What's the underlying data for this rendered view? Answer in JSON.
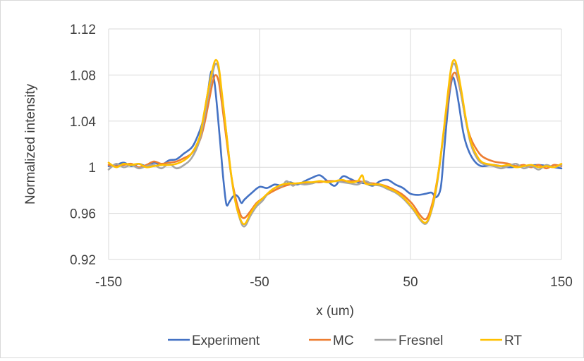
{
  "chart_data": {
    "type": "line",
    "title": "",
    "xlabel": "x (um)",
    "ylabel": "Normalized intensity",
    "xlim": [
      -150,
      150
    ],
    "ylim": [
      0.92,
      1.12
    ],
    "x_ticks": [
      -150,
      -50,
      50,
      150
    ],
    "x_tick_labels": [
      "-150",
      "-50",
      "50",
      "150"
    ],
    "y_ticks": [
      0.92,
      0.96,
      1.0,
      1.04,
      1.08,
      1.12
    ],
    "y_tick_labels": [
      "0.92",
      "0.96",
      "1",
      "1.04",
      "1.08",
      "1.12"
    ],
    "grid": "vertical and horizontal major gridlines",
    "legend_position": "bottom",
    "series": [
      {
        "name": "Experiment",
        "color": "#4472C4",
        "points": [
          [
            -150,
            1.001
          ],
          [
            -145,
            1.002
          ],
          [
            -140,
            1.004
          ],
          [
            -135,
            1.001
          ],
          [
            -130,
            1.003
          ],
          [
            -125,
            1.001
          ],
          [
            -120,
            1.004
          ],
          [
            -115,
            1.002
          ],
          [
            -110,
            1.006
          ],
          [
            -105,
            1.007
          ],
          [
            -100,
            1.012
          ],
          [
            -95,
            1.017
          ],
          [
            -92,
            1.024
          ],
          [
            -88,
            1.038
          ],
          [
            -86,
            1.052
          ],
          [
            -84,
            1.067
          ],
          [
            -82,
            1.083
          ],
          [
            -80,
            1.075
          ],
          [
            -78,
            1.05
          ],
          [
            -76,
            1.02
          ],
          [
            -74,
            0.99
          ],
          [
            -72,
            0.968
          ],
          [
            -70,
            0.97
          ],
          [
            -68,
            0.974
          ],
          [
            -66,
            0.976
          ],
          [
            -64,
            0.974
          ],
          [
            -62,
            0.969
          ],
          [
            -60,
            0.972
          ],
          [
            -55,
            0.978
          ],
          [
            -50,
            0.983
          ],
          [
            -45,
            0.982
          ],
          [
            -40,
            0.985
          ],
          [
            -35,
            0.984
          ],
          [
            -30,
            0.987
          ],
          [
            -25,
            0.985
          ],
          [
            -20,
            0.988
          ],
          [
            -15,
            0.991
          ],
          [
            -10,
            0.993
          ],
          [
            -5,
            0.988
          ],
          [
            0,
            0.984
          ],
          [
            5,
            0.992
          ],
          [
            10,
            0.99
          ],
          [
            15,
            0.987
          ],
          [
            20,
            0.986
          ],
          [
            25,
            0.984
          ],
          [
            30,
            0.988
          ],
          [
            35,
            0.989
          ],
          [
            40,
            0.985
          ],
          [
            45,
            0.982
          ],
          [
            50,
            0.977
          ],
          [
            55,
            0.976
          ],
          [
            60,
            0.977
          ],
          [
            64,
            0.978
          ],
          [
            67,
            0.974
          ],
          [
            70,
            0.982
          ],
          [
            72,
            1.01
          ],
          [
            74,
            1.04
          ],
          [
            76,
            1.065
          ],
          [
            78,
            1.078
          ],
          [
            80,
            1.07
          ],
          [
            82,
            1.055
          ],
          [
            85,
            1.03
          ],
          [
            88,
            1.016
          ],
          [
            92,
            1.006
          ],
          [
            97,
            1.001
          ],
          [
            105,
            1.002
          ],
          [
            115,
            1.0
          ],
          [
            125,
            1.001
          ],
          [
            135,
            1.002
          ],
          [
            145,
            1.0
          ],
          [
            150,
            0.999
          ]
        ]
      },
      {
        "name": "MC",
        "color": "#ED7D31",
        "points": [
          [
            -150,
            1.002
          ],
          [
            -145,
            1.001
          ],
          [
            -140,
            1.002
          ],
          [
            -135,
            1.003
          ],
          [
            -130,
            1.0
          ],
          [
            -125,
            1.002
          ],
          [
            -120,
            1.005
          ],
          [
            -115,
            1.003
          ],
          [
            -110,
            1.004
          ],
          [
            -105,
            1.005
          ],
          [
            -100,
            1.008
          ],
          [
            -95,
            1.012
          ],
          [
            -90,
            1.022
          ],
          [
            -87,
            1.035
          ],
          [
            -84,
            1.054
          ],
          [
            -81,
            1.074
          ],
          [
            -79,
            1.08
          ],
          [
            -77,
            1.074
          ],
          [
            -75,
            1.056
          ],
          [
            -72,
            1.025
          ],
          [
            -69,
            0.995
          ],
          [
            -66,
            0.974
          ],
          [
            -63,
            0.96
          ],
          [
            -61,
            0.956
          ],
          [
            -59,
            0.957
          ],
          [
            -56,
            0.962
          ],
          [
            -52,
            0.969
          ],
          [
            -48,
            0.973
          ],
          [
            -44,
            0.977
          ],
          [
            -40,
            0.98
          ],
          [
            -35,
            0.983
          ],
          [
            -30,
            0.985
          ],
          [
            -25,
            0.986
          ],
          [
            -20,
            0.986
          ],
          [
            -15,
            0.987
          ],
          [
            -10,
            0.987
          ],
          [
            -5,
            0.988
          ],
          [
            0,
            0.988
          ],
          [
            5,
            0.988
          ],
          [
            10,
            0.988
          ],
          [
            15,
            0.988
          ],
          [
            20,
            0.987
          ],
          [
            25,
            0.986
          ],
          [
            30,
            0.985
          ],
          [
            35,
            0.983
          ],
          [
            40,
            0.98
          ],
          [
            45,
            0.976
          ],
          [
            50,
            0.97
          ],
          [
            53,
            0.965
          ],
          [
            56,
            0.959
          ],
          [
            59,
            0.955
          ],
          [
            61,
            0.956
          ],
          [
            63,
            0.962
          ],
          [
            66,
            0.977
          ],
          [
            69,
            1.0
          ],
          [
            72,
            1.03
          ],
          [
            75,
            1.06
          ],
          [
            77,
            1.076
          ],
          [
            79,
            1.082
          ],
          [
            81,
            1.078
          ],
          [
            84,
            1.06
          ],
          [
            87,
            1.038
          ],
          [
            90,
            1.025
          ],
          [
            94,
            1.015
          ],
          [
            98,
            1.009
          ],
          [
            105,
            1.005
          ],
          [
            110,
            1.004
          ],
          [
            115,
            1.003
          ],
          [
            120,
            1.001
          ],
          [
            125,
            1.002
          ],
          [
            130,
            1.0
          ],
          [
            135,
            1.002
          ],
          [
            140,
            0.999
          ],
          [
            145,
            1.002
          ],
          [
            150,
            1.001
          ]
        ]
      },
      {
        "name": "Fresnel",
        "color": "#A5A5A5",
        "points": [
          [
            -150,
            0.998
          ],
          [
            -145,
            1.003
          ],
          [
            -140,
            1.0
          ],
          [
            -135,
            1.002
          ],
          [
            -130,
            0.999
          ],
          [
            -125,
            1.001
          ],
          [
            -120,
            1.002
          ],
          [
            -115,
            0.999
          ],
          [
            -110,
            1.003
          ],
          [
            -105,
            0.999
          ],
          [
            -100,
            1.002
          ],
          [
            -95,
            1.008
          ],
          [
            -90,
            1.022
          ],
          [
            -87,
            1.04
          ],
          [
            -84,
            1.062
          ],
          [
            -81,
            1.082
          ],
          [
            -79,
            1.09
          ],
          [
            -77,
            1.084
          ],
          [
            -75,
            1.063
          ],
          [
            -72,
            1.03
          ],
          [
            -69,
            0.995
          ],
          [
            -66,
            0.97
          ],
          [
            -63,
            0.955
          ],
          [
            -61,
            0.949
          ],
          [
            -59,
            0.95
          ],
          [
            -56,
            0.958
          ],
          [
            -52,
            0.966
          ],
          [
            -48,
            0.971
          ],
          [
            -44,
            0.978
          ],
          [
            -40,
            0.982
          ],
          [
            -35,
            0.984
          ],
          [
            -32,
            0.988
          ],
          [
            -28,
            0.984
          ],
          [
            -25,
            0.986
          ],
          [
            -20,
            0.985
          ],
          [
            -15,
            0.986
          ],
          [
            -10,
            0.988
          ],
          [
            -5,
            0.987
          ],
          [
            0,
            0.988
          ],
          [
            5,
            0.987
          ],
          [
            10,
            0.986
          ],
          [
            15,
            0.985
          ],
          [
            20,
            0.988
          ],
          [
            25,
            0.985
          ],
          [
            30,
            0.984
          ],
          [
            35,
            0.981
          ],
          [
            40,
            0.978
          ],
          [
            45,
            0.973
          ],
          [
            50,
            0.966
          ],
          [
            53,
            0.961
          ],
          [
            56,
            0.955
          ],
          [
            59,
            0.951
          ],
          [
            61,
            0.952
          ],
          [
            63,
            0.958
          ],
          [
            66,
            0.973
          ],
          [
            69,
            0.998
          ],
          [
            72,
            1.03
          ],
          [
            75,
            1.065
          ],
          [
            77,
            1.085
          ],
          [
            79,
            1.09
          ],
          [
            81,
            1.082
          ],
          [
            84,
            1.06
          ],
          [
            87,
            1.038
          ],
          [
            90,
            1.02
          ],
          [
            94,
            1.008
          ],
          [
            98,
            1.003
          ],
          [
            105,
            1.001
          ],
          [
            110,
            0.999
          ],
          [
            115,
            1.001
          ],
          [
            120,
            1.003
          ],
          [
            125,
            0.999
          ],
          [
            130,
            1.001
          ],
          [
            135,
            0.998
          ],
          [
            140,
            1.002
          ],
          [
            145,
            1.0
          ],
          [
            150,
            1.002
          ]
        ]
      },
      {
        "name": "RT",
        "color": "#FFC000",
        "points": [
          [
            -150,
            1.004
          ],
          [
            -145,
            1.0
          ],
          [
            -140,
            1.003
          ],
          [
            -135,
            1.002
          ],
          [
            -130,
            1.003
          ],
          [
            -125,
            1.0
          ],
          [
            -120,
            1.001
          ],
          [
            -115,
            1.002
          ],
          [
            -110,
            1.002
          ],
          [
            -105,
            1.003
          ],
          [
            -100,
            1.006
          ],
          [
            -95,
            1.012
          ],
          [
            -90,
            1.025
          ],
          [
            -87,
            1.045
          ],
          [
            -84,
            1.067
          ],
          [
            -81,
            1.086
          ],
          [
            -79,
            1.093
          ],
          [
            -77,
            1.087
          ],
          [
            -75,
            1.065
          ],
          [
            -72,
            1.03
          ],
          [
            -69,
            0.996
          ],
          [
            -66,
            0.97
          ],
          [
            -63,
            0.956
          ],
          [
            -61,
            0.951
          ],
          [
            -59,
            0.952
          ],
          [
            -56,
            0.96
          ],
          [
            -52,
            0.968
          ],
          [
            -48,
            0.973
          ],
          [
            -44,
            0.978
          ],
          [
            -40,
            0.982
          ],
          [
            -35,
            0.985
          ],
          [
            -30,
            0.986
          ],
          [
            -25,
            0.986
          ],
          [
            -20,
            0.987
          ],
          [
            -15,
            0.987
          ],
          [
            -10,
            0.988
          ],
          [
            -5,
            0.987
          ],
          [
            0,
            0.988
          ],
          [
            5,
            0.989
          ],
          [
            10,
            0.987
          ],
          [
            15,
            0.988
          ],
          [
            18,
            0.993
          ],
          [
            20,
            0.986
          ],
          [
            25,
            0.985
          ],
          [
            30,
            0.985
          ],
          [
            35,
            0.982
          ],
          [
            40,
            0.979
          ],
          [
            45,
            0.974
          ],
          [
            50,
            0.967
          ],
          [
            53,
            0.962
          ],
          [
            56,
            0.956
          ],
          [
            59,
            0.952
          ],
          [
            61,
            0.953
          ],
          [
            63,
            0.959
          ],
          [
            66,
            0.975
          ],
          [
            69,
            1.0
          ],
          [
            72,
            1.032
          ],
          [
            75,
            1.067
          ],
          [
            77,
            1.087
          ],
          [
            79,
            1.093
          ],
          [
            81,
            1.086
          ],
          [
            84,
            1.064
          ],
          [
            87,
            1.04
          ],
          [
            90,
            1.022
          ],
          [
            94,
            1.01
          ],
          [
            98,
            1.004
          ],
          [
            105,
            1.002
          ],
          [
            110,
            1.001
          ],
          [
            115,
            1.002
          ],
          [
            120,
            1.0
          ],
          [
            125,
            1.001
          ],
          [
            130,
            1.002
          ],
          [
            135,
            1.0
          ],
          [
            140,
            1.001
          ],
          [
            145,
            1.0
          ],
          [
            150,
            1.003
          ]
        ]
      }
    ]
  }
}
